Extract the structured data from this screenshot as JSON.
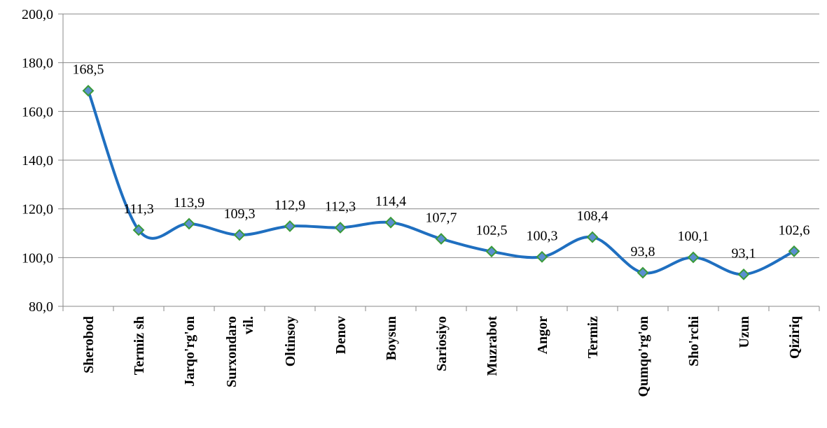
{
  "chart_data": {
    "type": "line",
    "categories": [
      [
        "Sherobod"
      ],
      [
        "Termiz sh"
      ],
      [
        "Jarqo'rg'on"
      ],
      [
        "Surxondaro",
        "vil."
      ],
      [
        "Oltinsoy"
      ],
      [
        "Denov"
      ],
      [
        "Boysun"
      ],
      [
        "Sariosiyo"
      ],
      [
        "Muzrabot"
      ],
      [
        "Angor"
      ],
      [
        "Termiz"
      ],
      [
        "Qumqo'rg'on"
      ],
      [
        "Sho'rchi"
      ],
      [
        "Uzun"
      ],
      [
        "Qiziriq"
      ]
    ],
    "values": [
      168.5,
      111.3,
      113.9,
      109.3,
      112.9,
      112.3,
      114.4,
      107.7,
      102.5,
      100.3,
      108.4,
      93.8,
      100.1,
      93.1,
      102.6
    ],
    "data_labels": [
      "168,5",
      "111,3",
      "113,9",
      "109,3",
      "112,9",
      "112,3",
      "114,4",
      "107,7",
      "102,5",
      "100,3",
      "108,4",
      "93,8",
      "100,1",
      "93,1",
      "102,6"
    ],
    "y_ticks": [
      {
        "value": 80,
        "label": "80,0"
      },
      {
        "value": 100,
        "label": "100,0"
      },
      {
        "value": 120,
        "label": "120,0"
      },
      {
        "value": 140,
        "label": "140,0"
      },
      {
        "value": 160,
        "label": "160,0"
      },
      {
        "value": 180,
        "label": "180,0"
      },
      {
        "value": 200,
        "label": "200,0"
      }
    ],
    "ylim": [
      80,
      200
    ],
    "grid": true,
    "smooth": true,
    "line_color": "#1f6fc0",
    "marker_fill": "#5b8fd0",
    "marker_stroke": "#3a9a3a",
    "title": "",
    "xlabel": "",
    "ylabel": ""
  }
}
